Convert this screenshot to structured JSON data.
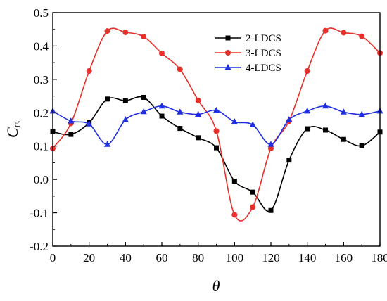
{
  "chart_data": {
    "type": "line",
    "xlabel": "θ",
    "ylabel": {
      "main": "C",
      "sub": "ts"
    },
    "xlim": [
      0,
      180
    ],
    "ylim": [
      -0.2,
      0.5
    ],
    "xticks": [
      "0",
      "20",
      "40",
      "60",
      "80",
      "100",
      "120",
      "140",
      "160",
      "180"
    ],
    "yticks": [
      "-0.2",
      "-0.1",
      "0.0",
      "0.1",
      "0.2",
      "0.3",
      "0.4",
      "0.5"
    ],
    "grid": false,
    "legend_position": "top-right",
    "x": [
      0,
      10,
      20,
      30,
      40,
      50,
      60,
      70,
      80,
      90,
      100,
      110,
      120,
      130,
      140,
      150,
      160,
      170,
      180
    ],
    "series": [
      {
        "name": "2-LDCS",
        "color": "#000000",
        "marker": "square",
        "values": [
          0.143,
          0.135,
          0.17,
          0.241,
          0.236,
          0.246,
          0.19,
          0.153,
          0.125,
          0.095,
          -0.005,
          -0.038,
          -0.093,
          0.058,
          0.152,
          0.148,
          0.12,
          0.101,
          0.142
        ]
      },
      {
        "name": "3-LDCS",
        "color": "#e8302a",
        "marker": "circle",
        "values": [
          0.093,
          0.168,
          0.325,
          0.445,
          0.441,
          0.428,
          0.378,
          0.33,
          0.237,
          0.145,
          -0.106,
          -0.083,
          0.093,
          0.175,
          0.325,
          0.446,
          0.44,
          0.429,
          0.379
        ]
      },
      {
        "name": "4-LDCS",
        "color": "#2030e0",
        "marker": "triangle",
        "values": [
          0.205,
          0.175,
          0.166,
          0.105,
          0.179,
          0.203,
          0.22,
          0.202,
          0.195,
          0.207,
          0.173,
          0.164,
          0.105,
          0.179,
          0.205,
          0.22,
          0.202,
          0.195,
          0.205
        ]
      }
    ]
  }
}
